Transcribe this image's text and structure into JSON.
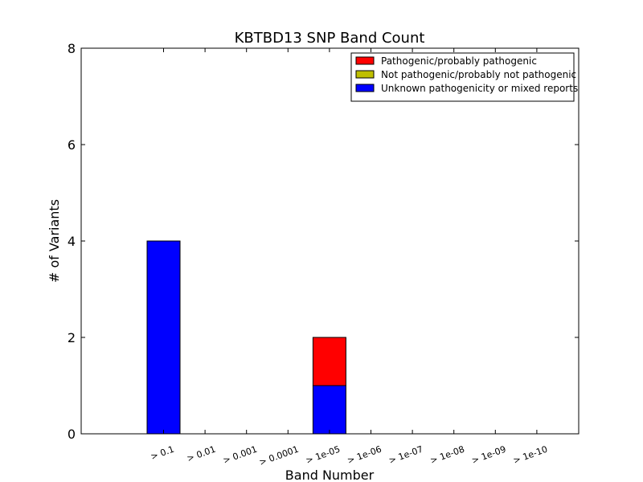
{
  "chart_data": {
    "type": "bar",
    "stacked": true,
    "title": "KBTBD13 SNP Band Count",
    "xlabel": "Band Number",
    "ylabel": "# of Variants",
    "ylim": [
      0,
      8
    ],
    "yticks": [
      "0",
      "2",
      "4",
      "6",
      "8"
    ],
    "categories": [
      "> 0.1",
      "> 0.01",
      "> 0.001",
      "> 0.0001",
      "> 1e-05",
      "> 1e-06",
      "> 1e-07",
      "> 1e-08",
      "> 1e-09",
      "> 1e-10"
    ],
    "series": [
      {
        "name": "Unknown pathogenicity or mixed reports",
        "color": "#0000ff",
        "values": [
          4,
          0,
          0,
          0,
          1,
          0,
          0,
          0,
          0,
          0
        ]
      },
      {
        "name": "Not pathogenic/probably not pathogenic",
        "color": "#bfbf00",
        "values": [
          0,
          0,
          0,
          0,
          0,
          0,
          0,
          0,
          0,
          0
        ]
      },
      {
        "name": "Pathogenic/probably pathogenic",
        "color": "#ff0000",
        "values": [
          0,
          0,
          0,
          0,
          1,
          0,
          0,
          0,
          0,
          0
        ]
      }
    ],
    "legend": {
      "placement": "top-right",
      "order": [
        "Pathogenic/probably pathogenic",
        "Not pathogenic/probably not pathogenic",
        "Unknown pathogenicity or mixed reports"
      ]
    },
    "grid": false
  }
}
